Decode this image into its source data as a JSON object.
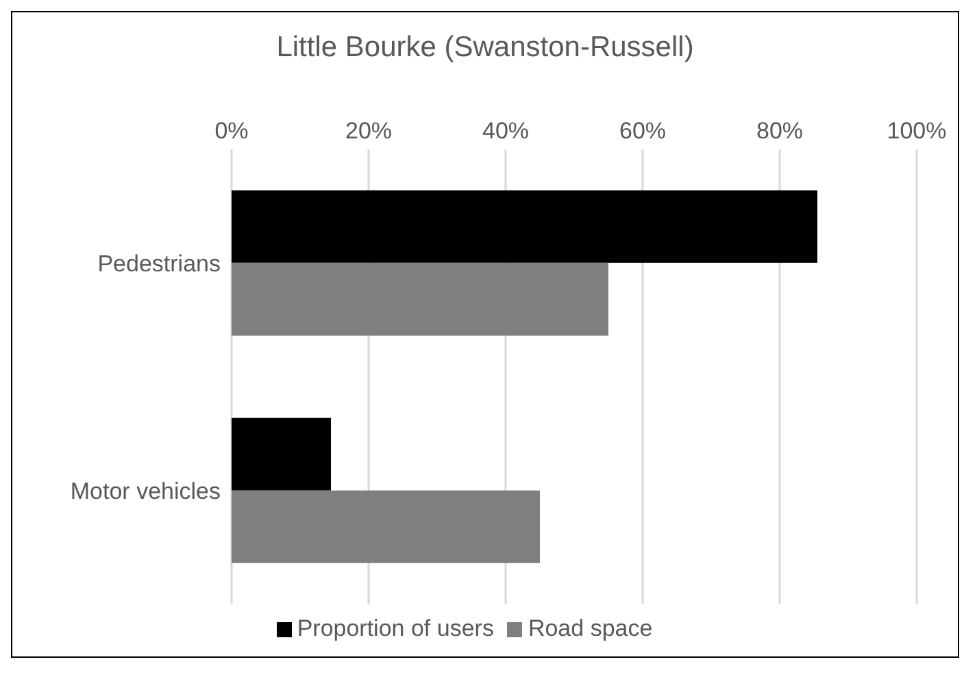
{
  "chart_data": {
    "type": "bar",
    "title": "Little Bourke (Swanston-Russell)",
    "orientation": "horizontal",
    "categories": [
      "Pedestrians",
      "Motor vehicles"
    ],
    "series": [
      {
        "name": "Proportion of users",
        "color": "#000000",
        "values": [
          85.5,
          14.5
        ]
      },
      {
        "name": "Road space",
        "color": "#7f7f7f",
        "values": [
          55,
          45
        ]
      }
    ],
    "xlim": [
      0,
      100
    ],
    "xticks": [
      {
        "value": 0,
        "label": "0%"
      },
      {
        "value": 20,
        "label": "20%"
      },
      {
        "value": 40,
        "label": "40%"
      },
      {
        "value": 60,
        "label": "60%"
      },
      {
        "value": 80,
        "label": "80%"
      },
      {
        "value": 100,
        "label": "100%"
      }
    ],
    "grid": "x",
    "legend": "bottom"
  }
}
